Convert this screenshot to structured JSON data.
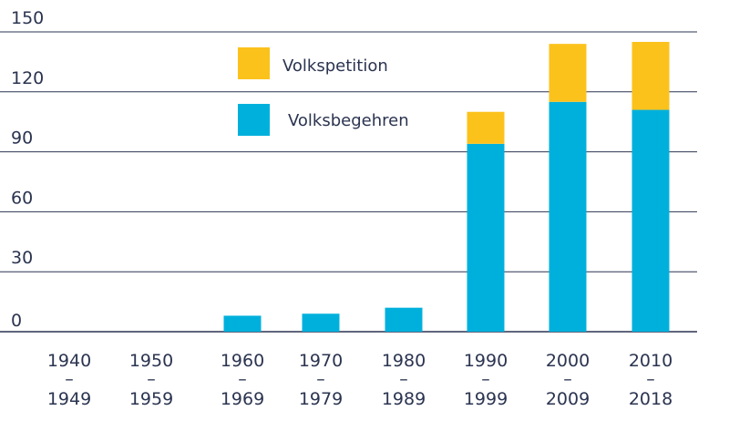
{
  "chart_data": {
    "type": "bar",
    "stacked": true,
    "categories": [
      {
        "line1": "1940",
        "dash": "–",
        "line2": "1949"
      },
      {
        "line1": "1950",
        "dash": "–",
        "line2": "1959"
      },
      {
        "line1": "1960",
        "dash": "–",
        "line2": "1969"
      },
      {
        "line1": "1970",
        "dash": "–",
        "line2": "1979"
      },
      {
        "line1": "1980",
        "dash": "–",
        "line2": "1989"
      },
      {
        "line1": "1990",
        "dash": "–",
        "line2": "1999"
      },
      {
        "line1": "2000",
        "dash": "–",
        "line2": "2009"
      },
      {
        "line1": "2010",
        "dash": "–",
        "line2": "2018"
      }
    ],
    "series": [
      {
        "name": "Volksbegehren",
        "color": "#00b0dc",
        "values": [
          0,
          0,
          8,
          9,
          12,
          94,
          115,
          111
        ]
      },
      {
        "name": "Volkspetition",
        "color": "#fcc21c",
        "values": [
          0,
          0,
          0,
          0,
          0,
          16,
          29,
          34
        ]
      }
    ],
    "ylim": [
      0,
      150
    ],
    "yticks": [
      "0",
      "30",
      "60",
      "90",
      "120",
      "150"
    ],
    "grid": true,
    "gridColor": "#2b3450",
    "legend": [
      {
        "label": "Volkspetition",
        "color": "#fcc21c"
      },
      {
        "label": "Volksbegehren",
        "color": "#00b0dc"
      }
    ],
    "legend_position": "top-center"
  }
}
